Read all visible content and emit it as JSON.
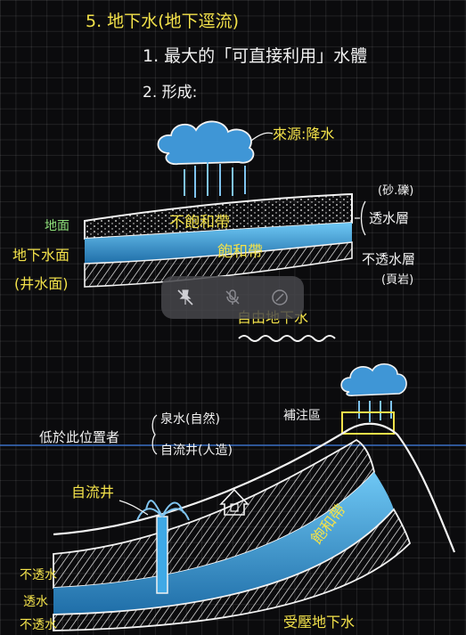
{
  "title": "5. 地下水(地下逕流)",
  "points": [
    "1. 最大的「可直接利用」水體",
    "2. 形成:"
  ],
  "top_diagram": {
    "source_label": "來源:降水",
    "surface_label": "地面",
    "unsaturated_label": "不飽和帶",
    "saturated_label": "飽和帶",
    "water_table_label": "地下水面",
    "well_water_label": "(井水面)",
    "aquifer_material": "(砂.礫)",
    "aquifer_label": "透水層",
    "aquitard_label": "不透水層",
    "aquitard_material": "(頁岩)",
    "free_groundwater_label": "自由地下水"
  },
  "bottom_diagram": {
    "recharge_label": "補注區",
    "lower_position_label": "低於此位置者",
    "spring_label": "泉水(自然)",
    "artesian_well_item": "自流井(人造)",
    "artesian_well_label": "自流井",
    "saturated_label": "飽和帶",
    "layer_labels": [
      "不透水",
      "透水",
      "不透水"
    ],
    "confined_label": "受壓地下水"
  },
  "colors": {
    "text": "#f3e24a",
    "water": "#3fa9e6",
    "line": "#f2f2f2",
    "grid": "#2a2a2e",
    "surface": "#8ee07a"
  },
  "toolbar_icons": [
    "pin-off-icon",
    "mic-off-icon",
    "close-circle-icon"
  ]
}
